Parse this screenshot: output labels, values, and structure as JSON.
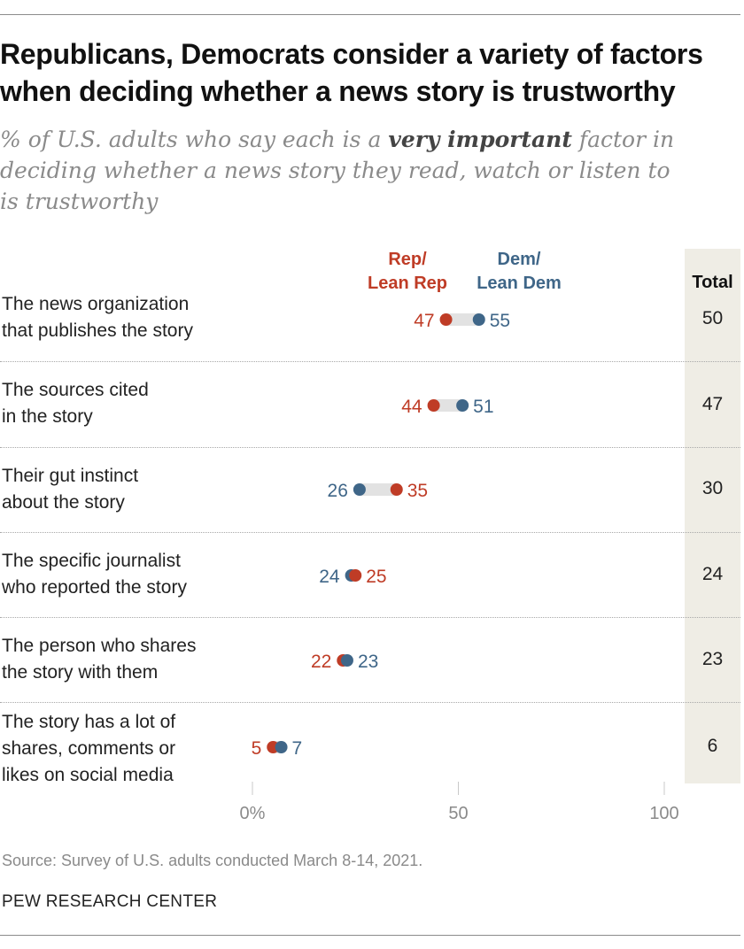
{
  "title": "Republicans, Democrats consider a variety of factors when deciding whether a news story is trustworthy",
  "subtitle": {
    "before": "% of U.S. adults who say each is a ",
    "emphasis": "very important",
    "after": " factor in deciding whether a news story they read, watch or listen to is trustworthy"
  },
  "colors": {
    "rep": "#bf3c26",
    "dem": "#3f6688",
    "connector": "#e2e2e2",
    "total_band": "#efede5",
    "axis": "#c8c8c8"
  },
  "chart_data": {
    "type": "dot",
    "title": "Republicans, Democrats consider a variety of factors when deciding whether a news story is trustworthy",
    "legend": {
      "rep": "Rep/\nLean Rep",
      "dem": "Dem/\nLean Dem"
    },
    "total_header": "Total",
    "xlim": [
      0,
      100
    ],
    "x_ticks": [
      {
        "value": 0,
        "label": "0%"
      },
      {
        "value": 50,
        "label": "50"
      },
      {
        "value": 100,
        "label": "100"
      }
    ],
    "categories": [
      "The news organization that publishes the story",
      "The sources cited in the story",
      "Their gut instinct about the story",
      "The specific journalist who reported the story",
      "The person who shares the story with them",
      "The story has a lot of shares, comments or likes on social media"
    ],
    "series": [
      {
        "name": "Rep/Lean Rep",
        "values": [
          47,
          44,
          35,
          25,
          22,
          5
        ]
      },
      {
        "name": "Dem/Lean Dem",
        "values": [
          55,
          51,
          26,
          24,
          23,
          7
        ]
      },
      {
        "name": "Total",
        "values": [
          50,
          47,
          30,
          24,
          23,
          6
        ]
      }
    ],
    "category_lines": [
      [
        "The news organization",
        "that publishes the story"
      ],
      [
        "The sources cited",
        "in the story"
      ],
      [
        "Their gut instinct",
        "about the story"
      ],
      [
        "The specific journalist",
        "who reported the story"
      ],
      [
        "The person who shares",
        "the story with them"
      ],
      [
        "The story has a lot of",
        "shares, comments or",
        "likes on social media"
      ]
    ]
  },
  "source": "Source: Survey of U.S. adults conducted March 8-14, 2021.",
  "brand": "PEW RESEARCH CENTER"
}
